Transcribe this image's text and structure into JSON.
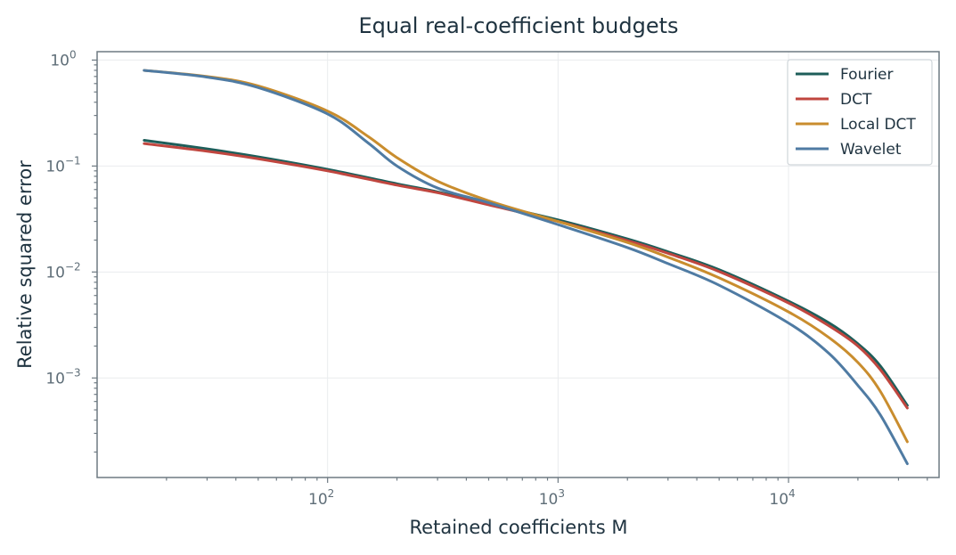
{
  "chart_data": {
    "type": "line",
    "title": "Equal real-coefficient budgets",
    "xlabel": "Retained coefficients M",
    "ylabel": "Relative squared error",
    "xscale": "log",
    "yscale": "log",
    "xlim": [
      10,
      45000
    ],
    "ylim": [
      0.000115,
      1.2
    ],
    "xticks": [
      {
        "base": "10",
        "exp": "2",
        "value": 100
      },
      {
        "base": "10",
        "exp": "3",
        "value": 1000
      },
      {
        "base": "10",
        "exp": "4",
        "value": 10000
      }
    ],
    "yticks": [
      {
        "base": "10",
        "exp": "0",
        "value": 1
      },
      {
        "base": "10",
        "exp": "−1",
        "value": 0.1
      },
      {
        "base": "10",
        "exp": "−2",
        "value": 0.01
      },
      {
        "base": "10",
        "exp": "−3",
        "value": 0.001
      }
    ],
    "grid": true,
    "legend_position": "top-right",
    "series": [
      {
        "name": "Fourier",
        "color": "#1d5e5a",
        "x": [
          16,
          30,
          50,
          100,
          200,
          300,
          500,
          1000,
          2000,
          3000,
          5000,
          10000,
          15000,
          20000,
          25000,
          32768
        ],
        "y": [
          0.175,
          0.145,
          0.122,
          0.093,
          0.068,
          0.057,
          0.044,
          0.031,
          0.0205,
          0.0155,
          0.0105,
          0.0053,
          0.0033,
          0.0021,
          0.0013,
          0.00055
        ]
      },
      {
        "name": "DCT",
        "color": "#c0463f",
        "x": [
          16,
          30,
          50,
          100,
          200,
          300,
          500,
          1000,
          2000,
          3000,
          5000,
          10000,
          15000,
          20000,
          25000,
          32768
        ],
        "y": [
          0.163,
          0.138,
          0.117,
          0.09,
          0.066,
          0.056,
          0.043,
          0.03,
          0.0198,
          0.015,
          0.0101,
          0.0051,
          0.0031,
          0.002,
          0.0012,
          0.00052
        ]
      },
      {
        "name": "Local DCT",
        "color": "#c98d2e",
        "x": [
          16,
          30,
          50,
          100,
          150,
          200,
          300,
          500,
          1000,
          2000,
          3000,
          5000,
          10000,
          15000,
          20000,
          25000,
          32768
        ],
        "y": [
          0.8,
          0.7,
          0.57,
          0.33,
          0.19,
          0.12,
          0.072,
          0.047,
          0.03,
          0.019,
          0.0138,
          0.0088,
          0.0042,
          0.0024,
          0.0014,
          0.00075,
          0.00025
        ]
      },
      {
        "name": "Wavelet",
        "color": "#4f7ba3",
        "x": [
          16,
          30,
          50,
          100,
          150,
          200,
          300,
          500,
          1000,
          2000,
          3000,
          5000,
          10000,
          15000,
          20000,
          25000,
          32768
        ],
        "y": [
          0.8,
          0.69,
          0.55,
          0.31,
          0.165,
          0.1,
          0.062,
          0.045,
          0.028,
          0.017,
          0.012,
          0.0075,
          0.0033,
          0.0017,
          0.00085,
          0.00045,
          0.000155
        ]
      }
    ]
  }
}
